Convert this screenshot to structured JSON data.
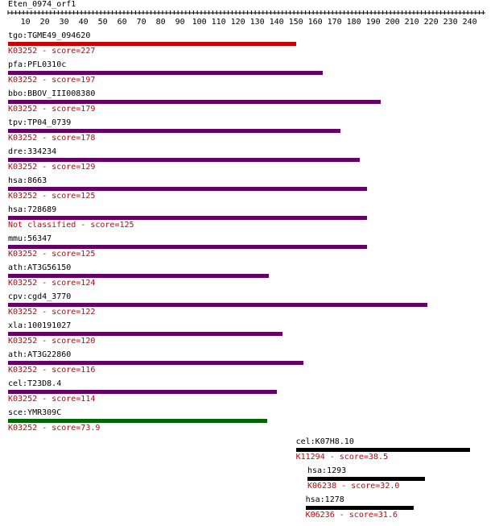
{
  "title": "Eten_0974_orf1",
  "ruler": {
    "min": 1,
    "max": 248,
    "labels": [
      "10",
      "20",
      "30",
      "40",
      "50",
      "60",
      "70",
      "80",
      "90",
      "100",
      "110",
      "120",
      "130",
      "140",
      "150",
      "160",
      "170",
      "180",
      "190",
      "200",
      "210",
      "220",
      "230",
      "240"
    ]
  },
  "hits": [
    {
      "label": "tgo:TGME49_094620",
      "score_text": "K03252 - score=227",
      "start": 1,
      "end": 149,
      "color": "#cc0000"
    },
    {
      "label": "pfa:PFL0310c",
      "score_text": "K03252 - score=197",
      "start": 1,
      "end": 163,
      "color": "#660066"
    },
    {
      "label": "bbo:BBOV_III008380",
      "score_text": "K03252 - score=179",
      "start": 1,
      "end": 193,
      "color": "#660066"
    },
    {
      "label": "tpv:TP04_0739",
      "score_text": "K03252 - score=178",
      "start": 1,
      "end": 172,
      "color": "#660066"
    },
    {
      "label": "dre:334234",
      "score_text": "K03252 - score=129",
      "start": 1,
      "end": 182,
      "color": "#660066"
    },
    {
      "label": "hsa:8663",
      "score_text": "K03252 - score=125",
      "start": 1,
      "end": 186,
      "color": "#660066"
    },
    {
      "label": "hsa:728689",
      "score_text": "Not classified - score=125",
      "start": 1,
      "end": 186,
      "color": "#660066"
    },
    {
      "label": "mmu:56347",
      "score_text": "K03252 - score=125",
      "start": 1,
      "end": 186,
      "color": "#660066"
    },
    {
      "label": "ath:AT3G56150",
      "score_text": "K03252 - score=124",
      "start": 1,
      "end": 135,
      "color": "#660066"
    },
    {
      "label": "cpv:cgd4_3770",
      "score_text": "K03252 - score=122",
      "start": 1,
      "end": 217,
      "color": "#660066"
    },
    {
      "label": "xla:100191027",
      "score_text": "K03252 - score=120",
      "start": 1,
      "end": 142,
      "color": "#660066"
    },
    {
      "label": "ath:AT3G22860",
      "score_text": "K03252 - score=116",
      "start": 1,
      "end": 153,
      "color": "#660066"
    },
    {
      "label": "cel:T23D8.4",
      "score_text": "K03252 - score=114",
      "start": 1,
      "end": 139,
      "color": "#660066"
    },
    {
      "label": "sce:YMR309C",
      "score_text": "K03252 - score=73.9",
      "start": 1,
      "end": 134,
      "color": "#006600"
    },
    {
      "label": "cel:K07H8.10",
      "score_text": "K11294 - score=38.5",
      "start": 150,
      "end": 239,
      "color": "#000000"
    },
    {
      "label": "hsa:1293",
      "score_text": "K06238 - score=32.0",
      "start": 156,
      "end": 216,
      "color": "#000000"
    },
    {
      "label": "hsa:1278",
      "score_text": "K06236 - score=31.6",
      "start": 155,
      "end": 210,
      "color": "#000000"
    }
  ]
}
